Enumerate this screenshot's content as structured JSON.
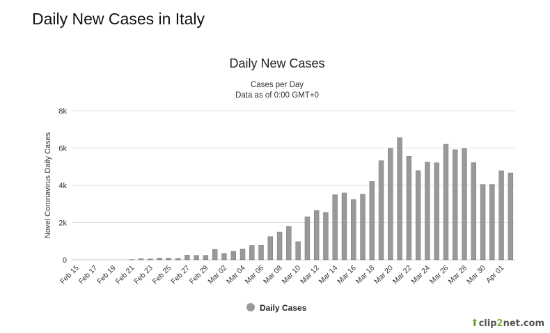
{
  "page": {
    "title": "Daily New Cases in Italy"
  },
  "watermark": {
    "prefix": "clip",
    "digit": "2",
    "suffix": "net.com"
  },
  "colors": {
    "bar": "#999999",
    "bar_stroke": "#777777",
    "grid": "#e0e0e0"
  },
  "chart_data": {
    "type": "bar",
    "title": "Daily New Cases",
    "subtitle_line1": "Cases per Day",
    "subtitle_line2": "Data as of 0:00 GMT+0",
    "xlabel": "",
    "ylabel": "Novel Coronavirus Daily Cases",
    "ylim": [
      0,
      8000
    ],
    "yticks": [
      0,
      2000,
      4000,
      6000,
      8000
    ],
    "ytick_labels": [
      "0",
      "2k",
      "4k",
      "6k",
      "8k"
    ],
    "legend": {
      "label": "Daily Cases",
      "position": "bottom-center"
    },
    "grid": true,
    "categories": [
      "Feb 15",
      "Feb 16",
      "Feb 17",
      "Feb 18",
      "Feb 19",
      "Feb 20",
      "Feb 21",
      "Feb 22",
      "Feb 23",
      "Feb 24",
      "Feb 25",
      "Feb 26",
      "Feb 27",
      "Feb 28",
      "Feb 29",
      "Mar 01",
      "Mar 02",
      "Mar 03",
      "Mar 04",
      "Mar 05",
      "Mar 06",
      "Mar 07",
      "Mar 08",
      "Mar 09",
      "Mar 10",
      "Mar 11",
      "Mar 12",
      "Mar 13",
      "Mar 14",
      "Mar 15",
      "Mar 16",
      "Mar 17",
      "Mar 18",
      "Mar 19",
      "Mar 20",
      "Mar 21",
      "Mar 22",
      "Mar 23",
      "Mar 24",
      "Mar 25",
      "Mar 26",
      "Mar 27",
      "Mar 28",
      "Mar 29",
      "Mar 30",
      "Mar 31",
      "Apr 01",
      "Apr 02"
    ],
    "xtick_labels": [
      "Feb 15",
      "Feb 17",
      "Feb 19",
      "Feb 21",
      "Feb 23",
      "Feb 25",
      "Feb 27",
      "Feb 29",
      "Mar 02",
      "Mar 04",
      "Mar 06",
      "Mar 08",
      "Mar 10",
      "Mar 12",
      "Mar 14",
      "Mar 16",
      "Mar 18",
      "Mar 20",
      "Mar 22",
      "Mar 24",
      "Mar 26",
      "Mar 28",
      "Mar 30",
      "Apr 01"
    ],
    "series": [
      {
        "name": "Daily Cases",
        "values": [
          0,
          0,
          0,
          0,
          0,
          0,
          14,
          62,
          53,
          97,
          93,
          78,
          250,
          238,
          240,
          566,
          342,
          466,
          587,
          769,
          778,
          1247,
          1492,
          1797,
          977,
          2313,
          2651,
          2547,
          3497,
          3590,
          3233,
          3526,
          4207,
          5322,
          5986,
          6557,
          5560,
          4789,
          5249,
          5210,
          6203,
          5909,
          5974,
          5217,
          4050,
          4053,
          4782,
          4668
        ]
      }
    ]
  }
}
